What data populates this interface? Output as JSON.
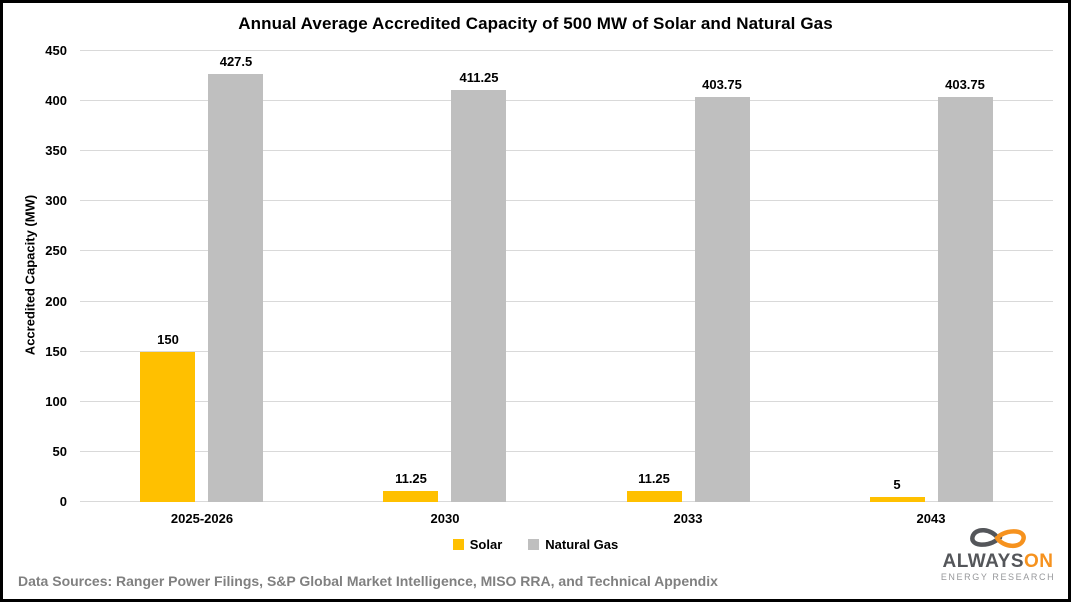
{
  "chart_data": {
    "type": "bar",
    "title": "Annual Average Accredited Capacity of 500 MW of Solar and Natural Gas",
    "xlabel": "",
    "ylabel": "Accredited Capacity (MW)",
    "ylim": [
      0,
      450
    ],
    "ytick_step": 50,
    "grid": true,
    "legend_position": "bottom",
    "categories": [
      "2025-2026",
      "2030",
      "2033",
      "2043"
    ],
    "series": [
      {
        "name": "Solar",
        "color": "#FFC000",
        "values": [
          150,
          11.25,
          11.25,
          5
        ],
        "labels": [
          "150",
          "11.25",
          "11.25",
          "5"
        ]
      },
      {
        "name": "Natural Gas",
        "color": "#BFBFBF",
        "values": [
          427.5,
          411.25,
          403.75,
          403.75
        ],
        "labels": [
          "427.5",
          "411.25",
          "403.75",
          "403.75"
        ]
      }
    ]
  },
  "footer": {
    "text": "Data Sources: Ranger Power Filings, S&P Global Market Intelligence, MISO RRA, and Technical Appendix"
  },
  "logo": {
    "brand_first": "ALWAYS",
    "brand_second": "ON",
    "subtitle": "ENERGY RESEARCH"
  },
  "colors": {
    "solar": "#FFC000",
    "natural_gas": "#BFBFBF",
    "gridline": "#D9D9D9",
    "footer_text": "#808080",
    "logo_dark": "#54565A",
    "logo_orange": "#F6921E",
    "logo_subtitle": "#97989B"
  }
}
